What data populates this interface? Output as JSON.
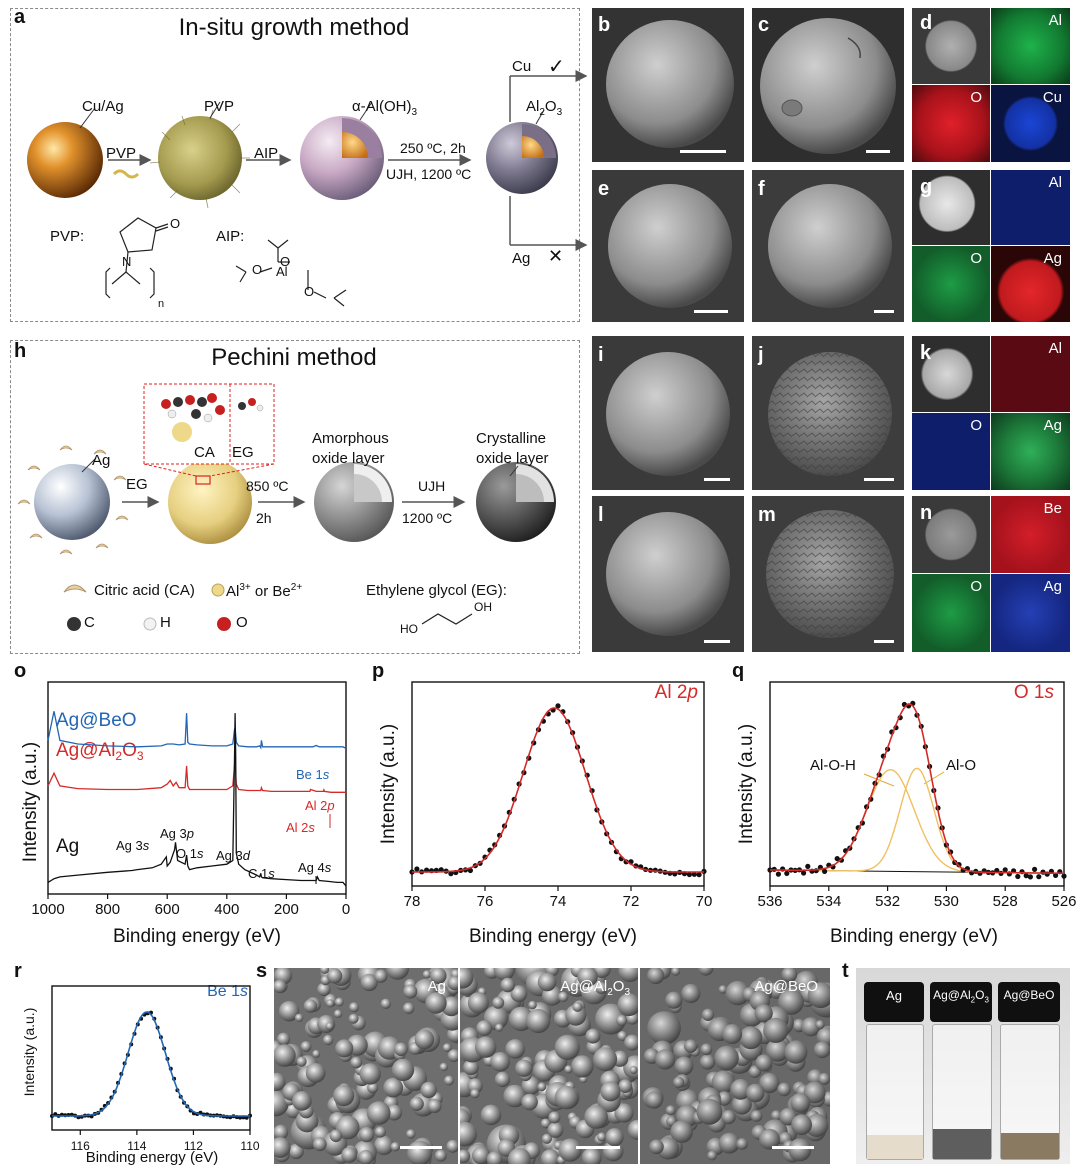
{
  "panel_letters": [
    "a",
    "b",
    "c",
    "d",
    "e",
    "f",
    "g",
    "h",
    "i",
    "j",
    "k",
    "l",
    "m",
    "n",
    "o",
    "p",
    "q",
    "r",
    "s",
    "t"
  ],
  "panel_a": {
    "title": "In-situ growth method",
    "cuag": "Cu/Ag",
    "pvp_arrow": "PVP",
    "pvp_label": "PVP",
    "aip_arrow": "AIP",
    "aloh": "α-Al(OH)",
    "aloh_sub": "3",
    "cond_1": "250 ºC, 2h",
    "cond_2": "UJH, 1200 ºC",
    "al2o3_a": "Al",
    "al2o3_b": "2",
    "al2o3_c": "O",
    "al2o3_d": "3",
    "cu": "Cu",
    "cu_mark": "✓",
    "ag": "Ag",
    "ag_mark": "✕",
    "pvp_struct": "PVP:",
    "aip_struct": "AIP:",
    "struct_o": "O",
    "struct_n": "N",
    "struct_al": "Al",
    "struct_sub": "n"
  },
  "panel_h": {
    "title": "Pechini method",
    "ag": "Ag",
    "eg": "EG",
    "ca": "CA",
    "eg_box": "EG",
    "step1_a": "850 ºC",
    "step1_b": "2h",
    "step2_a": "UJH",
    "step2_b": "1200 ºC",
    "amorph_a": "Amorphous",
    "amorph_b": "oxide layer",
    "cryst_a": "Crystalline",
    "cryst_b": "oxide layer",
    "leg_ca": "Citric acid (CA)",
    "leg_ion_a": "Al",
    "leg_ion_b": "3+",
    "leg_ion_c": " or Be",
    "leg_ion_d": "2+",
    "leg_eg": "Ethylene glycol (EG):",
    "leg_c": "C",
    "leg_h": "H",
    "leg_o": "O",
    "eg_ho": "HO",
    "eg_oh": "OH"
  },
  "maps": {
    "d": [
      "Al",
      "O",
      "Cu"
    ],
    "g": [
      "Al",
      "O",
      "Ag"
    ],
    "k": [
      "Al",
      "O",
      "Ag"
    ],
    "n": [
      "Be",
      "O",
      "Ag"
    ]
  },
  "colors": {
    "al_green": "#169a3a",
    "o_red": "#c2171e",
    "cu_blue": "#1635b8",
    "ag_red": "#d11a1a",
    "blue_line": "#2366b5",
    "red_line": "#d42a2a",
    "fit_orange": "#f0c060"
  },
  "panel_s": {
    "labels": [
      "Ag",
      "Ag@Al",
      "Ag@BeO"
    ],
    "al_sub_2": "2",
    "al_o": "O",
    "al_sub_3": "3"
  },
  "panel_t": {
    "labels": [
      "Ag",
      "Ag@Al",
      "Ag@BeO"
    ],
    "sub_2": "2",
    "o": "O",
    "sub_3": "3"
  },
  "chart_data": [
    {
      "panel": "o",
      "type": "line",
      "xlabel": "Binding energy (eV)",
      "ylabel": "Intensity (a.u.)",
      "xlim": [
        1000,
        0
      ],
      "xticks": [
        "1000",
        "800",
        "600",
        "400",
        "200",
        "0"
      ],
      "series": [
        {
          "name": "Ag@BeO",
          "color": "#2366b5",
          "x": [
            1000,
            980,
            960,
            900,
            800,
            700,
            620,
            600,
            580,
            560,
            540,
            535,
            531,
            525,
            500,
            450,
            400,
            380,
            374,
            372,
            368,
            360,
            330,
            300,
            290,
            286,
            284,
            280,
            250,
            200,
            150,
            111,
            100,
            90,
            60,
            30,
            10,
            5,
            0
          ],
          "y": [
            0.8,
            0.96,
            0.8,
            0.78,
            0.77,
            0.765,
            0.77,
            0.78,
            0.78,
            0.775,
            0.78,
            0.95,
            0.79,
            0.78,
            0.775,
            0.77,
            0.77,
            0.78,
            0.86,
            0.87,
            0.79,
            0.77,
            0.765,
            0.765,
            0.77,
            0.76,
            0.8,
            0.765,
            0.765,
            0.765,
            0.765,
            0.765,
            0.772,
            0.765,
            0.765,
            0.765,
            0.765,
            0.76,
            0.765
          ]
        },
        {
          "name": "Ag@Al2O3",
          "color": "#d42a2a",
          "x": [
            1000,
            980,
            960,
            900,
            800,
            700,
            620,
            600,
            590,
            580,
            570,
            560,
            540,
            535,
            531,
            525,
            500,
            450,
            400,
            380,
            374,
            372,
            368,
            360,
            330,
            300,
            290,
            286,
            284,
            280,
            250,
            200,
            150,
            121,
            119,
            100,
            76,
            74,
            72,
            50,
            30,
            10,
            0
          ],
          "y": [
            0.55,
            0.62,
            0.55,
            0.535,
            0.53,
            0.53,
            0.54,
            0.56,
            0.58,
            0.55,
            0.57,
            0.54,
            0.54,
            0.66,
            0.55,
            0.53,
            0.53,
            0.53,
            0.53,
            0.55,
            0.66,
            0.68,
            0.56,
            0.53,
            0.525,
            0.525,
            0.525,
            0.525,
            0.54,
            0.525,
            0.52,
            0.52,
            0.52,
            0.52,
            0.53,
            0.52,
            0.52,
            0.528,
            0.52,
            0.515,
            0.515,
            0.515,
            0.515
          ]
        },
        {
          "name": "Ag",
          "color": "#111111",
          "x": [
            1000,
            980,
            960,
            900,
            800,
            718,
            700,
            650,
            620,
            603,
            600,
            590,
            575,
            572,
            565,
            540,
            535,
            531,
            525,
            500,
            450,
            400,
            380,
            374,
            372,
            370,
            368,
            360,
            340,
            300,
            290,
            286,
            284,
            280,
            250,
            200,
            150,
            100,
            96,
            90,
            60,
            30,
            10,
            0
          ],
          "y": [
            0.02,
            0.04,
            0.05,
            0.06,
            0.075,
            0.085,
            0.09,
            0.1,
            0.12,
            0.16,
            0.11,
            0.13,
            0.2,
            0.24,
            0.14,
            0.12,
            0.17,
            0.11,
            0.09,
            0.1,
            0.11,
            0.12,
            0.14,
            0.7,
            0.95,
            0.72,
            0.18,
            0.12,
            0.09,
            0.06,
            0.05,
            0.07,
            0.05,
            0.045,
            0.04,
            0.035,
            0.03,
            0.03,
            0.05,
            0.03,
            0.025,
            0.02,
            0.02,
            0.0
          ]
        }
      ],
      "annotations": {
        "beo": "Ag@BeO",
        "al2o3_a": "Ag@Al",
        "al2o3_b": "2",
        "al2o3_c": "O",
        "al2o3_d": "3",
        "ag": "Ag",
        "be1s_a": "Be 1",
        "be1s_b": "s",
        "al2p_a": "Al 2",
        "al2p_b": "p",
        "al2s_a": "Al 2",
        "al2s_b": "s",
        "ag3d_a": "Ag 3",
        "ag3d_b": "d",
        "ag3p_a": "Ag 3",
        "ag3p_b": "p",
        "ag3s_a": "Ag 3",
        "ag3s_b": "s",
        "o1s_a": "O 1",
        "o1s_b": "s",
        "c1s_a": "C 1",
        "c1s_b": "s",
        "ag4s_a": "Ag 4",
        "ag4s_b": "s"
      }
    },
    {
      "panel": "p",
      "type": "line",
      "title_a": "Al 2",
      "title_b": "p",
      "xlabel": "Binding energy (eV)",
      "ylabel": "Intensity (a.u.)",
      "xlim": [
        78,
        70
      ],
      "xticks": [
        "78",
        "76",
        "74",
        "72",
        "70"
      ],
      "peak": {
        "center": 74.1,
        "fwhm": 2.0,
        "height": 1.0,
        "baseline": 0.0
      }
    },
    {
      "panel": "q",
      "type": "line",
      "title_a": "O 1",
      "title_b": "s",
      "xlabel": "Binding energy (eV)",
      "ylabel": "Intensity (a.u.)",
      "xlim": [
        536,
        526
      ],
      "xticks": [
        "536",
        "534",
        "532",
        "530",
        "528",
        "526"
      ],
      "components": [
        {
          "name": "Al-O-H",
          "center": 531.9,
          "fwhm": 1.9,
          "height": 0.62
        },
        {
          "name": "Al-O",
          "center": 531.0,
          "fwhm": 1.35,
          "height": 0.63
        }
      ],
      "baseline": [
        0.0,
        -0.02
      ]
    },
    {
      "panel": "r",
      "type": "line",
      "title_a": "Be 1",
      "title_b": "s",
      "xlabel": "Binding energy (eV)",
      "ylabel": "Intensity (a.u.)",
      "xlim": [
        117,
        110
      ],
      "xticks": [
        "116",
        "114",
        "112",
        "110"
      ],
      "peak": {
        "center": 113.65,
        "fwhm": 1.55,
        "height": 1.0,
        "baseline": 0.0
      }
    }
  ]
}
